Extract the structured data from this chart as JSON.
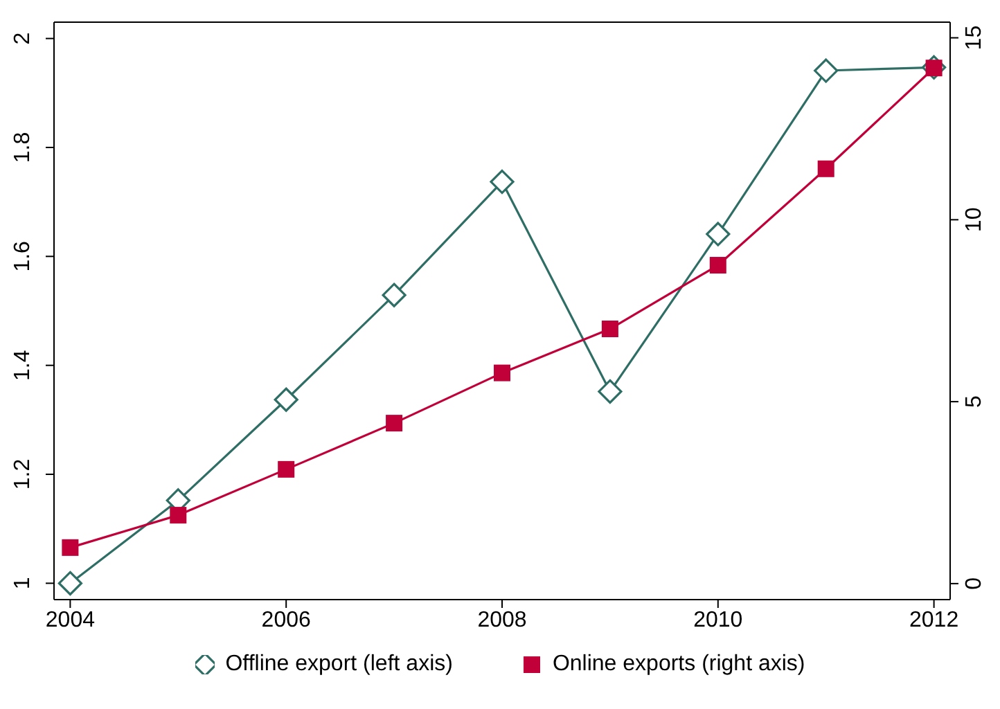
{
  "chart_data": {
    "type": "line",
    "x": [
      2004,
      2005,
      2006,
      2007,
      2008,
      2009,
      2010,
      2011,
      2012
    ],
    "series": [
      {
        "name": "Offline export (left axis)",
        "color": "#2e6e65",
        "marker": "diamond",
        "values": [
          1.0,
          1.152,
          1.337,
          1.529,
          1.737,
          1.352,
          1.641,
          1.941,
          1.947
        ]
      },
      {
        "name": "Online exports (right axis)",
        "color": "#c1003a",
        "marker": "square",
        "axis": "y2",
        "values": [
          0.99,
          1.88,
          3.14,
          4.41,
          5.79,
          7.0,
          8.75,
          11.4,
          14.17
        ]
      }
    ],
    "xlim": [
      2003.85,
      2012.15
    ],
    "xticks": [
      2004,
      2006,
      2008,
      2010,
      2012
    ],
    "ylim": [
      0.97,
      2.03
    ],
    "yticks": [
      1,
      1.2,
      1.4,
      1.6,
      1.8,
      2
    ],
    "y2lim": [
      -0.44,
      15.43
    ],
    "y2ticks": [
      0,
      5,
      10,
      15
    ],
    "grid": false,
    "legend": "bottom",
    "line_style": "solid"
  }
}
